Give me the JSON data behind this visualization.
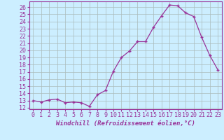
{
  "x": [
    0,
    1,
    2,
    3,
    4,
    5,
    6,
    7,
    8,
    9,
    10,
    11,
    12,
    13,
    14,
    15,
    16,
    17,
    18,
    19,
    20,
    21,
    22,
    23
  ],
  "y": [
    13.0,
    12.8,
    13.1,
    13.2,
    12.7,
    12.8,
    12.7,
    12.2,
    13.8,
    14.4,
    17.1,
    19.0,
    19.9,
    21.2,
    21.2,
    23.2,
    24.8,
    26.3,
    26.2,
    25.2,
    24.7,
    21.8,
    19.3,
    17.3
  ],
  "line_color": "#993399",
  "marker": "+",
  "xlabel": "Windchill (Refroidissement éolien,°C)",
  "xlabel_fontsize": 6.5,
  "ylabel_ticks": [
    12,
    13,
    14,
    15,
    16,
    17,
    18,
    19,
    20,
    21,
    22,
    23,
    24,
    25,
    26
  ],
  "xlim": [
    -0.5,
    23.5
  ],
  "ylim": [
    11.8,
    26.8
  ],
  "bg_color": "#cceeff",
  "grid_color": "#aabbbb",
  "tick_fontsize": 6.0
}
